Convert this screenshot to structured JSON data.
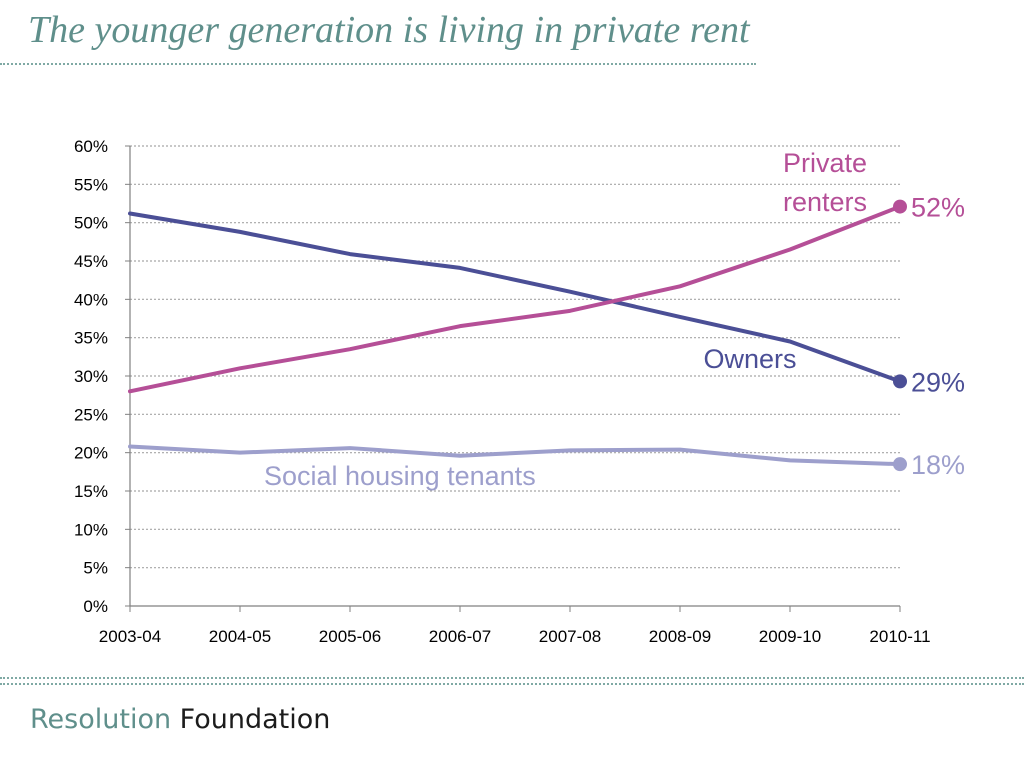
{
  "title": "The younger generation is living in private rent",
  "brand": {
    "part1": "Resolution",
    "part2": "Foundation"
  },
  "colors": {
    "accent": "#5f8f8b"
  },
  "chart_data": {
    "type": "line",
    "x": [
      "2003-04",
      "2004-05",
      "2005-06",
      "2006-07",
      "2007-08",
      "2008-09",
      "2009-10",
      "2010-11"
    ],
    "ylim": [
      0,
      60
    ],
    "y_ticks": [
      0,
      5,
      10,
      15,
      20,
      25,
      30,
      35,
      40,
      45,
      50,
      55,
      60
    ],
    "y_tick_format": "percent",
    "grid": true,
    "legend": "none",
    "series": [
      {
        "name": "Private renters",
        "label_lines": [
          "Private",
          "renters"
        ],
        "color": "#b54f97",
        "values": [
          28,
          31,
          33.5,
          36.5,
          38.5,
          41.7,
          46.5,
          52.1
        ],
        "end_label": "52%"
      },
      {
        "name": "Owners",
        "label_lines": [
          "Owners"
        ],
        "color": "#4b4f96",
        "values": [
          51.2,
          48.8,
          45.9,
          44.1,
          41,
          37.7,
          34.5,
          29.3
        ],
        "end_label": "29%"
      },
      {
        "name": "Social housing tenants",
        "label_lines": [
          "Social housing tenants"
        ],
        "color": "#9d9fcc",
        "values": [
          20.8,
          20,
          20.6,
          19.6,
          20.3,
          20.4,
          19,
          18.5
        ],
        "end_label": "18%"
      }
    ]
  }
}
